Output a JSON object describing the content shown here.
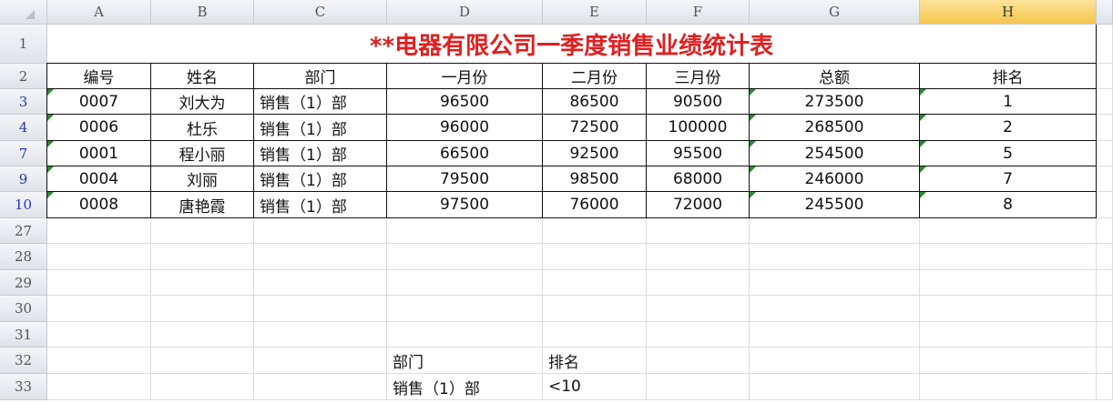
{
  "columns": [
    "A",
    "B",
    "C",
    "D",
    "E",
    "F",
    "G",
    "H"
  ],
  "selected_column": "H",
  "title": "**电器有限公司一季度销售业绩统计表",
  "title_color": "#e02020",
  "headers": [
    "编号",
    "姓名",
    "部门",
    "一月份",
    "二月份",
    "三月份",
    "总额",
    "排名"
  ],
  "rows": [
    {
      "row": "3",
      "cells": [
        "0007",
        "刘大为",
        "销售（1）部",
        "96500",
        "86500",
        "90500",
        "273500",
        "1"
      ]
    },
    {
      "row": "4",
      "cells": [
        "0006",
        "杜乐",
        "销售（1）部",
        "96000",
        "72500",
        "100000",
        "268500",
        "2"
      ]
    },
    {
      "row": "7",
      "cells": [
        "0001",
        "程小丽",
        "销售（1）部",
        "66500",
        "92500",
        "95500",
        "254500",
        "5"
      ]
    },
    {
      "row": "9",
      "cells": [
        "0004",
        "刘丽",
        "销售（1）部",
        "79500",
        "98500",
        "68000",
        "246000",
        "7"
      ]
    },
    {
      "row": "10",
      "cells": [
        "0008",
        "唐艳霞",
        "销售（1）部",
        "97500",
        "76000",
        "72000",
        "245500",
        "8"
      ]
    }
  ],
  "empty_rows": [
    "27",
    "28",
    "29",
    "30",
    "31"
  ],
  "criteria": {
    "row_labels": [
      "32",
      "33"
    ],
    "header": [
      "部门",
      "排名"
    ],
    "values": [
      "销售（1）部",
      "<10"
    ]
  },
  "filtered_row_color": "#2a36b8"
}
